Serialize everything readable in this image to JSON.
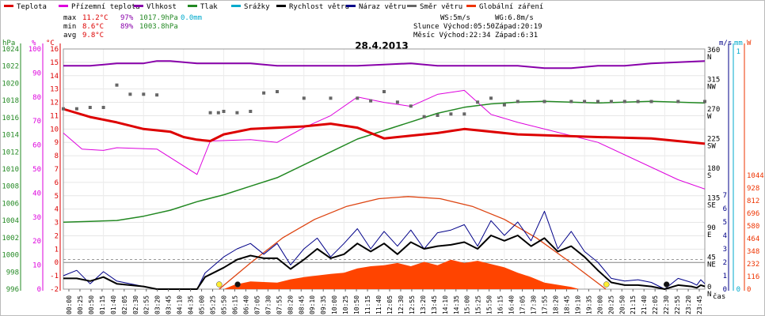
{
  "chart_data": {
    "type": "line",
    "title": "28.4.2013",
    "x_unit": "čas",
    "legend": [
      {
        "key": "teplota",
        "label": "Teplota",
        "color": "#dd0000"
      },
      {
        "key": "pritemp",
        "label": "Přízemní teplota",
        "color": "#dd00dd"
      },
      {
        "key": "vlhkost",
        "label": "Vlhkost",
        "color": "#8800aa"
      },
      {
        "key": "tlak",
        "label": "Tlak",
        "color": "#228822"
      },
      {
        "key": "srazky",
        "label": "Srážky",
        "color": "#00aacc"
      },
      {
        "key": "rychlost",
        "label": "Rychlost větru",
        "color": "#000000"
      },
      {
        "key": "naraz",
        "label": "Náraz větru",
        "color": "#000088"
      },
      {
        "key": "smer",
        "label": "Směr větru",
        "color": "#666666"
      },
      {
        "key": "zareni",
        "label": "Globální záření",
        "color": "#ee3300"
      }
    ],
    "stats": {
      "max": {
        "label": "max",
        "temp": "11.2°C",
        "hum": "97%",
        "press": "1017.9hPa",
        "rain": "0.0mm"
      },
      "min": {
        "label": "min",
        "temp": "8.6°C",
        "hum": "89%",
        "press": "1003.8hPa"
      },
      "avg": {
        "label": "avg",
        "temp": "9.8°C"
      }
    },
    "info": {
      "ws": "WS:5m/s",
      "wg": "WG:6.8m/s",
      "sun": "Slunce Východ:05:50",
      "sun_set": "Západ:20:19",
      "moon": "Měsíc Východ:22:34",
      "moon_set": "Západ:6:31"
    },
    "axes": {
      "hpa": {
        "unit": "hPa",
        "ticks": [
          "1024",
          "1022",
          "1020",
          "1018",
          "1016",
          "1014",
          "1012",
          "1010",
          "1008",
          "1006",
          "1004",
          "1002",
          "1000",
          "998",
          "996"
        ]
      },
      "pct": {
        "unit": "%",
        "ticks": [
          "100",
          "95",
          "90",
          "85",
          "80",
          "75",
          "70",
          "65",
          "60",
          "55",
          "50",
          "45",
          "40",
          "35",
          "30",
          "25",
          "20",
          "15",
          "10",
          "5",
          "0"
        ]
      },
      "degc": {
        "unit": "°C",
        "ticks": [
          "16",
          "15",
          "14",
          "13",
          "12",
          "11",
          "10",
          "9",
          "8",
          "7",
          "6",
          "5",
          "4",
          "3",
          "2",
          "1",
          "0",
          "-1",
          "-2"
        ]
      },
      "dir": {
        "ticks": [
          "360",
          "315",
          "270",
          "225",
          "180",
          "135",
          "90",
          "45",
          "0"
        ],
        "labels": [
          "N",
          "NW",
          "W",
          "SW",
          "S",
          "SE",
          "E",
          "NE",
          "N"
        ]
      },
      "ms": {
        "unit": "m/s",
        "ticks": [
          "7",
          "6",
          "5",
          "4",
          "3",
          "2",
          "1",
          "0"
        ]
      },
      "mm": {
        "unit": "mm",
        "ticks": [
          "1",
          "0"
        ]
      },
      "w": {
        "unit": "W",
        "ticks": [
          "1044",
          "928",
          "812",
          "696",
          "580",
          "464",
          "348",
          "232",
          "116",
          "0"
        ]
      }
    },
    "x_ticks": [
      "00:00",
      "00:25",
      "00:50",
      "01:15",
      "01:40",
      "02:05",
      "02:30",
      "02:55",
      "03:20",
      "03:45",
      "04:10",
      "04:35",
      "05:00",
      "05:25",
      "05:50",
      "06:15",
      "06:40",
      "07:05",
      "07:30",
      "07:55",
      "08:20",
      "08:45",
      "09:10",
      "09:35",
      "10:00",
      "10:25",
      "10:50",
      "11:15",
      "11:40",
      "12:05",
      "12:30",
      "12:55",
      "13:20",
      "13:45",
      "14:10",
      "14:35",
      "15:00",
      "15:25",
      "15:50",
      "16:15",
      "16:40",
      "17:05",
      "17:30",
      "17:55",
      "18:20",
      "18:45",
      "19:10",
      "19:35",
      "20:00",
      "20:25",
      "20:50",
      "21:15",
      "21:40",
      "22:05",
      "22:30",
      "22:55",
      "23:20",
      "23:45"
    ],
    "x_hours": [
      0,
      1.5,
      3,
      4.5,
      6,
      7.5,
      9,
      10.5,
      12,
      13.5,
      15,
      16.5,
      18,
      19.5,
      21,
      22.5,
      24
    ],
    "series": {
      "teplota_degC": [
        11.5,
        10.9,
        10.5,
        10.0,
        9.8,
        9.4,
        9.2,
        9.1,
        9.6,
        10.0,
        10.1,
        10.2,
        10.4,
        10.1,
        9.3,
        9.5,
        9.7,
        10.0,
        9.6,
        9.4,
        9.3,
        8.9
      ],
      "teplota_hours": [
        0,
        1,
        2,
        3,
        4,
        4.5,
        5,
        5.5,
        6,
        7,
        8,
        9,
        10,
        11,
        12,
        13,
        14,
        15,
        17,
        20,
        22,
        24
      ],
      "pritemp_degC": [
        9.7,
        8.5,
        8.4,
        8.6,
        8.5,
        6.6,
        9.1,
        9.2,
        9.0,
        10.1,
        11.0,
        12.4,
        12.0,
        11.7,
        12.6,
        12.9,
        11.1,
        10.5,
        9.0,
        6.2,
        5.5
      ],
      "pritemp_hours": [
        0,
        0.7,
        1.5,
        2,
        3.5,
        5,
        5.5,
        7,
        8,
        9,
        10,
        11,
        12,
        13,
        14,
        15,
        16,
        17,
        20,
        23,
        24
      ],
      "vlhkost_pct": [
        93,
        93,
        94,
        94,
        95,
        95,
        94,
        94,
        94,
        93,
        93,
        93,
        93,
        94,
        93,
        93,
        93,
        93,
        92,
        92,
        93,
        93,
        94,
        95
      ],
      "vlhkost_hours": [
        0,
        1,
        2,
        3,
        3.5,
        4,
        5,
        6,
        7,
        8,
        9,
        10,
        11,
        13,
        14,
        15,
        16,
        17,
        18,
        19,
        20,
        21,
        22,
        24
      ],
      "tlak_hPa": [
        1003.8,
        1003.9,
        1004.0,
        1004.5,
        1005.2,
        1006.2,
        1007.0,
        1008.0,
        1009.0,
        1010.5,
        1012.0,
        1013.5,
        1014.5,
        1015.5,
        1016.5,
        1017.2,
        1017.6,
        1017.8,
        1017.9,
        1017.7,
        1017.9,
        1017.7
      ],
      "tlak_hours": [
        0,
        1,
        2,
        3,
        4,
        5,
        6,
        7,
        8,
        9,
        10,
        11,
        12,
        13,
        14,
        15,
        16,
        17,
        18,
        20,
        22,
        24
      ],
      "smer_deg": [
        274,
        274,
        276,
        276,
        310,
        296,
        296,
        295,
        268,
        268,
        270,
        268,
        270,
        298,
        300,
        290,
        290,
        290,
        286,
        300,
        284,
        278,
        262,
        264,
        266,
        266,
        284,
        290,
        280,
        285,
        285,
        285,
        285,
        285,
        285,
        285,
        285,
        285,
        285,
        285
      ],
      "smer_hours": [
        0,
        0.5,
        1,
        1.5,
        2,
        2.5,
        3,
        3.5,
        5.5,
        5.8,
        6,
        6.5,
        7,
        7.5,
        8,
        9,
        10,
        11,
        11.5,
        12,
        12.5,
        13,
        13.5,
        14,
        14.5,
        15,
        15.5,
        16,
        16.5,
        17,
        18,
        19,
        19.5,
        20,
        20.5,
        21,
        21.5,
        22,
        23,
        24
      ],
      "rychlost_ms": [
        0.8,
        0.8,
        0.6,
        0.9,
        0.4,
        0.2,
        0,
        0,
        0,
        0.9,
        1.6,
        2.2,
        2.5,
        2.3,
        2.3,
        1.5,
        2.2,
        3.0,
        2.3,
        2.6,
        3.4,
        2.8,
        3.4,
        2.6,
        3.5,
        3.0,
        3.2,
        3.3,
        3.5,
        3.0,
        4.0,
        3.6,
        4.0,
        3.2,
        3.8,
        2.8,
        3.2,
        2.4,
        1.4,
        0.5,
        0.3,
        0.3,
        0.2,
        0,
        0.3,
        0.2,
        0.1,
        0.3,
        0.2
      ],
      "rychlost_hours": [
        0,
        0.5,
        1,
        1.5,
        2,
        3,
        3.5,
        4.5,
        5,
        5.3,
        6,
        6.5,
        7,
        7.5,
        8,
        8.5,
        9,
        9.5,
        10,
        10.5,
        11,
        11.5,
        12,
        12.5,
        13,
        13.5,
        14,
        14.5,
        15,
        15.5,
        16,
        16.5,
        17,
        17.5,
        18,
        18.5,
        19,
        19.5,
        20,
        20.5,
        21,
        21.5,
        22,
        22.5,
        23,
        23.5,
        23.7,
        23.85,
        24
      ],
      "naraz_ms": [
        1.0,
        1.4,
        0.4,
        1.3,
        0.6,
        0.2,
        0,
        0,
        0,
        1.2,
        2.4,
        3.0,
        3.4,
        2.6,
        3.4,
        1.8,
        3.0,
        3.8,
        2.4,
        3.4,
        4.5,
        3.0,
        4.3,
        3.2,
        4.4,
        3.0,
        4.2,
        4.4,
        4.8,
        3.2,
        5.1,
        4.0,
        5.0,
        3.6,
        5.8,
        3.0,
        4.3,
        2.8,
        2.0,
        0.8,
        0.6,
        0.7,
        0.5,
        0,
        0.8,
        0.5,
        0.3,
        0.7,
        0.4
      ],
      "naraz_hours": [
        0,
        0.5,
        1,
        1.5,
        2,
        3,
        3.5,
        4.5,
        5,
        5.3,
        6,
        6.5,
        7,
        7.5,
        8,
        8.5,
        9,
        9.5,
        10,
        10.5,
        11,
        11.5,
        12,
        12.5,
        13,
        13.5,
        14,
        14.5,
        15,
        15.5,
        16,
        16.5,
        17,
        17.5,
        18,
        18.5,
        19,
        19.5,
        20,
        20.5,
        21,
        21.5,
        22,
        22.5,
        23,
        23.5,
        23.7,
        23.85,
        24
      ],
      "zareni_W": [
        0,
        0,
        40,
        70,
        60,
        90,
        110,
        140,
        150,
        190,
        210,
        220,
        240,
        210,
        250,
        220,
        270,
        240,
        260,
        230,
        200,
        150,
        110,
        60,
        20,
        0,
        0
      ],
      "zareni_hours": [
        5.8,
        6.0,
        6.4,
        7,
        8,
        8.5,
        9,
        10,
        10.5,
        11,
        11.5,
        12,
        12.5,
        13,
        13.5,
        14,
        14.5,
        15,
        15.5,
        16,
        16.5,
        17,
        17.5,
        18,
        19,
        19.3,
        20.3
      ],
      "zareni_theory_W": [
        0,
        240,
        470,
        640,
        760,
        830,
        850,
        830,
        760,
        640,
        470,
        240,
        0
      ],
      "zareni_theory_hours": [
        5.83,
        7,
        8.2,
        9.4,
        10.6,
        11.8,
        12.9,
        14.1,
        15.3,
        16.5,
        17.7,
        19,
        20.3
      ]
    },
    "markers": [
      {
        "hour": 5.83,
        "type": "sunrise",
        "color": "#ffee33"
      },
      {
        "hour": 6.52,
        "type": "moonset",
        "color": "#111111"
      },
      {
        "hour": 20.32,
        "type": "sunset",
        "color": "#ffee33"
      },
      {
        "hour": 22.57,
        "type": "moonrise",
        "color": "#111111"
      }
    ]
  }
}
